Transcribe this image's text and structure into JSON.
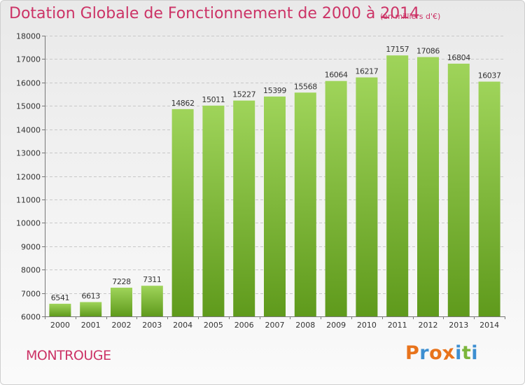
{
  "header": {
    "title": "Dotation Globale de Fonctionnement de 2000 à 2014",
    "subtitle": "(en milliers d'€)"
  },
  "footer": {
    "place": "MONTROUGE",
    "logo_letters": [
      "P",
      "r",
      "o",
      "x",
      "i",
      "t",
      "i"
    ]
  },
  "colors": {
    "accent": "#cc3366",
    "bar_light": "#9fd45a",
    "bar_dark": "#5f9a1c",
    "logo": [
      "#e8731b",
      "#3d8fd1",
      "#e8731b",
      "#e8731b",
      "#3d8fd1",
      "#7bb53b",
      "#3d8fd1"
    ]
  },
  "chart_data": {
    "type": "bar",
    "title": "Dotation Globale de Fonctionnement de 2000 à 2014",
    "subtitle": "(en milliers d'€)",
    "categories": [
      "2000",
      "2001",
      "2002",
      "2003",
      "2004",
      "2005",
      "2006",
      "2007",
      "2008",
      "2009",
      "2010",
      "2011",
      "2012",
      "2013",
      "2014"
    ],
    "values": [
      6541,
      6613,
      7228,
      7311,
      14862,
      15011,
      15227,
      15399,
      15568,
      16064,
      16217,
      17157,
      17086,
      16804,
      16037
    ],
    "ylim": [
      6000,
      18000
    ],
    "yticks": [
      6000,
      7000,
      8000,
      9000,
      10000,
      11000,
      12000,
      13000,
      14000,
      15000,
      16000,
      17000,
      18000
    ],
    "grid": true
  }
}
